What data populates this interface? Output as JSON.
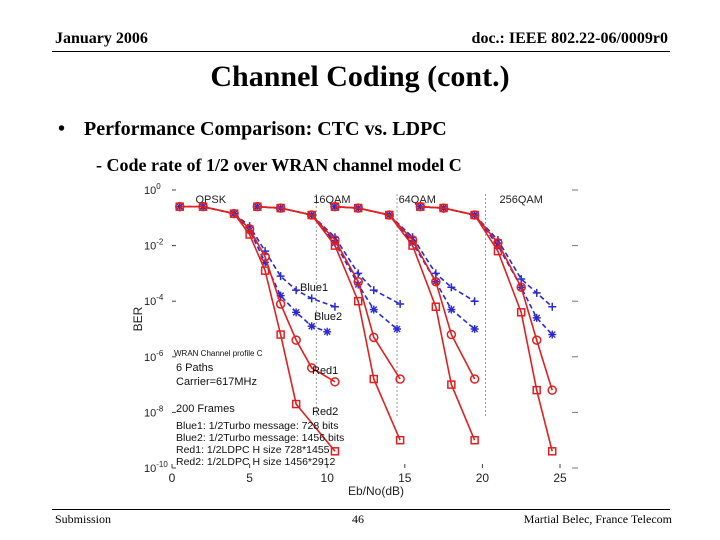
{
  "header": {
    "date": "January 2006",
    "doc_id": "doc.: IEEE 802.22-06/0009r0"
  },
  "slide": {
    "title": "Channel Coding (cont.)",
    "bullet": "Performance Comparison: CTC vs. LDPC",
    "subbullet": "- Code rate of 1/2 over WRAN channel model C"
  },
  "footer": {
    "left": "Submission",
    "page": "46",
    "right": "Martial Belec, France Telecom"
  },
  "chart_data": {
    "type": "line",
    "xlabel": "Eb/No(dB)",
    "ylabel": "BER",
    "xlim": [
      0,
      25
    ],
    "ylim_log10": [
      -10,
      0
    ],
    "y_scale": "log",
    "x_ticks": [
      0,
      5,
      10,
      15,
      20,
      25
    ],
    "y_tick_labels": [
      "10^0",
      "10^-2",
      "10^-4",
      "10^-6",
      "10^-8",
      "10^-10"
    ],
    "y_ticks_log10": [
      0,
      -2,
      -4,
      -6,
      -8,
      -10
    ],
    "modulation_labels": [
      {
        "text": "QPSK",
        "x": 2.5
      },
      {
        "text": "16QAM",
        "x": 10.3
      },
      {
        "text": "64QAM",
        "x": 15.8
      },
      {
        "text": "256QAM",
        "x": 22.5
      }
    ],
    "separators_x": [
      9.3,
      14.5,
      20.2
    ],
    "inset_title": "WRAN Channel profile C",
    "inset_lines": [
      "6 Paths",
      "Carrier=617MHz",
      "200 Frames"
    ],
    "legend": [
      "Blue1: 1/2Turbo message: 728 bits",
      "Blue2: 1/2Turbo message: 1456 bits",
      "Red1:  1/2LDPC H size 728*1455",
      "Red2:  1/2LDPC H size 1456*2912"
    ],
    "curve_labels": [
      "Blue1",
      "Blue2",
      "Red1",
      "Red2"
    ],
    "series": [
      {
        "name": "Blue1",
        "group": "QPSK",
        "color": "#2a2ad0",
        "dash": true,
        "marker": "plus",
        "x": [
          0.5,
          2,
          4,
          5,
          6,
          7,
          8,
          9,
          10.5
        ],
        "y": [
          -0.6,
          -0.6,
          -0.85,
          -1.3,
          -2.2,
          -3.1,
          -3.6,
          -3.9,
          -4.2
        ]
      },
      {
        "name": "Blue2",
        "group": "QPSK",
        "color": "#2a2ad0",
        "dash": true,
        "marker": "star",
        "x": [
          0.5,
          2,
          4,
          5,
          6,
          7,
          8,
          9,
          10
        ],
        "y": [
          -0.6,
          -0.6,
          -0.85,
          -1.45,
          -2.6,
          -3.8,
          -4.4,
          -4.9,
          -5.1
        ]
      },
      {
        "name": "Red1",
        "group": "QPSK",
        "color": "#e02020",
        "dash": false,
        "marker": "circle",
        "x": [
          0.5,
          2,
          4,
          5,
          6,
          7,
          8,
          9,
          10.5
        ],
        "y": [
          -0.6,
          -0.6,
          -0.85,
          -1.4,
          -2.4,
          -4.1,
          -5.4,
          -6.4,
          -6.9
        ]
      },
      {
        "name": "Red2",
        "group": "QPSK",
        "color": "#e02020",
        "dash": false,
        "marker": "square",
        "x": [
          0.5,
          2,
          4,
          5,
          6,
          7,
          8,
          10.5
        ],
        "y": [
          -0.6,
          -0.6,
          -0.85,
          -1.6,
          -2.9,
          -5.2,
          -7.7,
          -9.4
        ]
      },
      {
        "name": "Blue1",
        "group": "16QAM",
        "color": "#2a2ad0",
        "dash": true,
        "marker": "plus",
        "x": [
          5.5,
          7,
          9,
          10.5,
          12,
          13,
          14.7
        ],
        "y": [
          -0.6,
          -0.65,
          -0.9,
          -1.7,
          -3.0,
          -3.6,
          -4.1
        ]
      },
      {
        "name": "Blue2",
        "group": "16QAM",
        "color": "#2a2ad0",
        "dash": true,
        "marker": "star",
        "x": [
          5.5,
          7,
          9,
          10.5,
          12,
          13,
          14.5
        ],
        "y": [
          -0.6,
          -0.65,
          -0.9,
          -1.9,
          -3.4,
          -4.3,
          -5.0
        ]
      },
      {
        "name": "Red1",
        "group": "16QAM",
        "color": "#e02020",
        "dash": false,
        "marker": "circle",
        "x": [
          5.5,
          7,
          9,
          10.5,
          12,
          13,
          14.7
        ],
        "y": [
          -0.6,
          -0.65,
          -0.9,
          -1.8,
          -3.3,
          -5.3,
          -6.8
        ]
      },
      {
        "name": "Red2",
        "group": "16QAM",
        "color": "#e02020",
        "dash": false,
        "marker": "square",
        "x": [
          5.5,
          7,
          9,
          10.5,
          12,
          13,
          14.7
        ],
        "y": [
          -0.6,
          -0.65,
          -0.9,
          -2.0,
          -4.0,
          -6.8,
          -9.0
        ]
      },
      {
        "name": "Blue1",
        "group": "64QAM",
        "color": "#2a2ad0",
        "dash": true,
        "marker": "plus",
        "x": [
          10.5,
          12,
          14,
          15.5,
          17,
          18,
          19.5
        ],
        "y": [
          -0.6,
          -0.65,
          -0.9,
          -1.7,
          -3.0,
          -3.5,
          -4.0
        ]
      },
      {
        "name": "Blue2",
        "group": "64QAM",
        "color": "#2a2ad0",
        "dash": true,
        "marker": "star",
        "x": [
          10.5,
          12,
          14,
          15.5,
          17,
          18,
          19.5
        ],
        "y": [
          -0.6,
          -0.65,
          -0.9,
          -1.9,
          -3.3,
          -4.3,
          -5.0
        ]
      },
      {
        "name": "Red1",
        "group": "64QAM",
        "color": "#e02020",
        "dash": false,
        "marker": "circle",
        "x": [
          10.5,
          12,
          14,
          15.5,
          17,
          18,
          19.5
        ],
        "y": [
          -0.6,
          -0.65,
          -0.9,
          -1.8,
          -3.3,
          -5.2,
          -6.8
        ]
      },
      {
        "name": "Red2",
        "group": "64QAM",
        "color": "#e02020",
        "dash": false,
        "marker": "square",
        "x": [
          10.5,
          12,
          14,
          15.5,
          17,
          18,
          19.5
        ],
        "y": [
          -0.6,
          -0.65,
          -0.9,
          -2.0,
          -4.2,
          -7.0,
          -9.0
        ]
      },
      {
        "name": "Blue1",
        "group": "256QAM",
        "color": "#2a2ad0",
        "dash": true,
        "marker": "plus",
        "x": [
          16,
          17.5,
          19.5,
          21,
          22.5,
          23.5,
          24.5
        ],
        "y": [
          -0.6,
          -0.65,
          -0.9,
          -1.8,
          -3.2,
          -3.7,
          -4.2
        ]
      },
      {
        "name": "Blue2",
        "group": "256QAM",
        "color": "#2a2ad0",
        "dash": true,
        "marker": "star",
        "x": [
          16,
          17.5,
          19.5,
          21,
          22.5,
          23.5,
          24.5
        ],
        "y": [
          -0.6,
          -0.65,
          -0.9,
          -2.0,
          -3.5,
          -4.6,
          -5.2
        ]
      },
      {
        "name": "Red1",
        "group": "256QAM",
        "color": "#e02020",
        "dash": false,
        "marker": "circle",
        "x": [
          16,
          17.5,
          19.5,
          21,
          22.5,
          23.5,
          24.5
        ],
        "y": [
          -0.6,
          -0.65,
          -0.9,
          -1.9,
          -3.5,
          -5.4,
          -7.2
        ]
      },
      {
        "name": "Red2",
        "group": "256QAM",
        "color": "#e02020",
        "dash": false,
        "marker": "square",
        "x": [
          16,
          17.5,
          19.5,
          21,
          22.5,
          23.5,
          24.5
        ],
        "y": [
          -0.6,
          -0.65,
          -0.9,
          -2.2,
          -4.4,
          -7.2,
          -9.4
        ]
      }
    ]
  }
}
